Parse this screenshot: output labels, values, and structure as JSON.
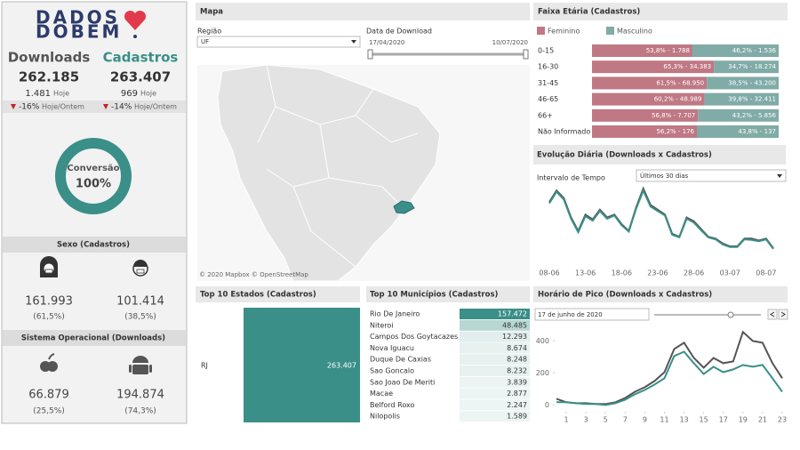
{
  "sidebar": {
    "logo": [
      "DADOS",
      "DOBEM"
    ],
    "downloads": {
      "label": "Downloads",
      "total": "262.185",
      "today": "1.481",
      "today_label": "Hoje",
      "change": "-16%",
      "change_label": "Hoje/Ontem"
    },
    "cadastros": {
      "label": "Cadastros",
      "total": "263.407",
      "today": "969",
      "today_label": "Hoje",
      "change": "-14%",
      "change_label": "Hoje/Ontem"
    },
    "conversion": {
      "label": "Conversão",
      "value": 100,
      "value_label": "100%"
    },
    "sex": {
      "title": "Sexo (Cadastros)",
      "items": [
        {
          "value": "161.993",
          "share": "(61,5%)"
        },
        {
          "value": "101.414",
          "share": "(38,5%)"
        }
      ]
    },
    "os": {
      "title": "Sistema Operacional (Downloads)",
      "items": [
        {
          "value": "66.879",
          "share": "(25,5%)"
        },
        {
          "value": "194.874",
          "share": "(74,3%)"
        }
      ]
    }
  },
  "map": {
    "title": "Mapa",
    "region_label": "Região",
    "region_value": "UF",
    "date_label": "Data de Download",
    "date_start": "17/04/2020",
    "date_end": "10/07/2020",
    "credit": "© 2020 Mapbox © OpenStreetMap"
  },
  "chart_data": [
    {
      "type": "stacked",
      "title": "Faixa Etária (Cadastros)",
      "categories": [
        "0-15",
        "16-30",
        "31-45",
        "46-65",
        "66+",
        "Não Informado"
      ],
      "xlim": [
        0,
        100
      ],
      "series": [
        {
          "name": "Feminino",
          "color": "#bf7884",
          "values": [
            53.8,
            65.3,
            61.5,
            60.2,
            56.8,
            56.2
          ],
          "value_labels": [
            "53,8% - 1.788",
            "65,3% - 34.383",
            "61,5% - 68.950",
            "60,2% - 48.989",
            "56,8% - 7.707",
            "56,2% - 176"
          ]
        },
        {
          "name": "Masculino",
          "color": "#80aba6",
          "values": [
            46.2,
            34.7,
            38.5,
            39.8,
            43.2,
            43.8
          ],
          "value_labels": [
            "46,2% - 1.536",
            "34,7% - 18.274",
            "38,5% - 43.200",
            "39,8% - 32.411",
            "43,2% - 5.856",
            "43,8% - 137"
          ]
        }
      ]
    },
    {
      "type": "line",
      "title": "Evolução Diária (Downloads x Cadastros)",
      "control_label": "Intervalo de Tempo",
      "control_value": "Últimos 30 dias",
      "categories": [
        "08-06",
        null,
        null,
        null,
        null,
        "13-06",
        null,
        null,
        null,
        null,
        "18-06",
        null,
        null,
        null,
        null,
        "23-06",
        null,
        null,
        null,
        null,
        "28-06",
        null,
        null,
        null,
        null,
        "03-07",
        null,
        null,
        null,
        null,
        "08-07",
        null
      ],
      "series": [
        {
          "color": "#555555",
          "values": [
            8700,
            10500,
            9300,
            6300,
            4200,
            6750,
            6000,
            7500,
            6300,
            6750,
            5250,
            4200,
            7800,
            10800,
            8250,
            7500,
            6750,
            3750,
            3300,
            6300,
            5700,
            4500,
            3300,
            3000,
            2250,
            1800,
            1800,
            3000,
            3000,
            2700,
            3000,
            1500
          ]
        },
        {
          "color": "#3a8f88",
          "values": [
            8500,
            10300,
            9100,
            6100,
            4000,
            6500,
            5800,
            7300,
            6100,
            6600,
            5100,
            4100,
            7600,
            10500,
            8000,
            7300,
            6600,
            3600,
            3200,
            6100,
            5500,
            4300,
            3200,
            2900,
            2100,
            1700,
            1700,
            2900,
            2800,
            2600,
            2900,
            1400
          ]
        }
      ]
    },
    {
      "type": "hbar",
      "title": "Top 10 Estados (Cadastros)",
      "categories": [
        "RJ"
      ],
      "values": [
        263407
      ],
      "value_labels": [
        "263.407"
      ],
      "color": "#3a8f88"
    },
    {
      "type": "highlight",
      "title": "Top 10 Municípios (Cadastros)",
      "categories": [
        "Rio De Janeiro",
        "Niteroi",
        "Campos Dos Goytacazes",
        "Nova Iguacu",
        "Duque De Caxias",
        "Sao Goncalo",
        "Sao Joao De Meriti",
        "Macae",
        "Belford Roxo",
        "Nilopolis"
      ],
      "values": [
        157472,
        48485,
        12293,
        8674,
        8248,
        8232,
        3839,
        2877,
        2247,
        1589
      ],
      "value_labels": [
        "157.472",
        "48.485",
        "12.293",
        "8.674",
        "8.248",
        "8.232",
        "3.839",
        "2.877",
        "2.247",
        "1.589"
      ],
      "color": "#3a8f88"
    },
    {
      "type": "line",
      "title": "Horário de Pico (Downloads x Cadastros)",
      "control_value": "17 de junho de 2020",
      "x": [
        0,
        1,
        2,
        3,
        4,
        5,
        6,
        7,
        8,
        9,
        10,
        11,
        12,
        13,
        14,
        15,
        16,
        17,
        18,
        19,
        20,
        21,
        22,
        23
      ],
      "xlim": [
        0,
        23
      ],
      "xticks": [
        1,
        3,
        5,
        7,
        9,
        11,
        13,
        15,
        17,
        19,
        21,
        23
      ],
      "ylim": [
        -20,
        480
      ],
      "yticks": [
        0,
        200,
        400
      ],
      "series": [
        {
          "color": "#555555",
          "values": [
            39,
            17,
            11,
            11,
            6,
            6,
            17,
            44,
            83,
            111,
            150,
            205,
            350,
            389,
            294,
            233,
            294,
            261,
            272,
            456,
            400,
            389,
            261,
            167
          ]
        },
        {
          "color": "#3a8f88",
          "values": [
            17,
            17,
            11,
            6,
            6,
            0,
            11,
            33,
            67,
            94,
            128,
            167,
            306,
            333,
            261,
            194,
            239,
            205,
            222,
            250,
            239,
            250,
            167,
            83
          ]
        }
      ]
    }
  ]
}
